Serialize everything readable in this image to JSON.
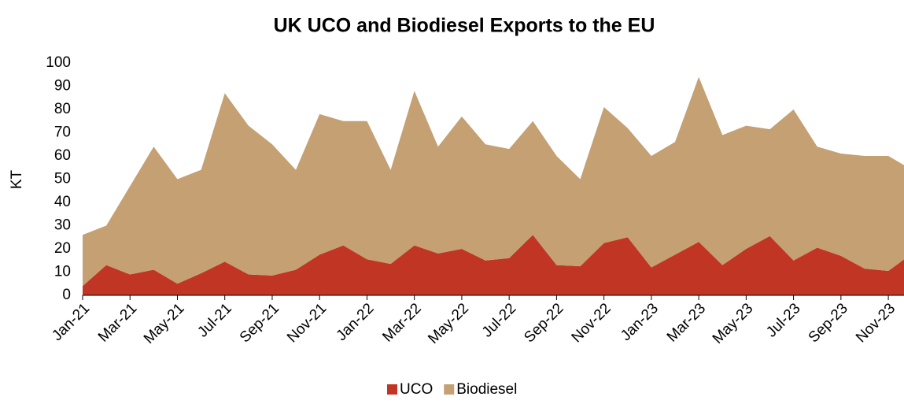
{
  "chart_data": {
    "type": "stacked_area",
    "title": "UK UCO and Biodiesel Exports to the EU",
    "y_label": "KT",
    "categories": [
      "Jan-21",
      null,
      "Mar-21",
      null,
      "May-21",
      null,
      "Jul-21",
      null,
      "Sep-21",
      null,
      "Nov-21",
      null,
      "Jan-22",
      null,
      "Mar-22",
      null,
      "May-22",
      null,
      "Jul-22",
      null,
      "Sep-22",
      null,
      "Nov-22",
      null,
      "Jan-23",
      null,
      "Mar-23",
      null,
      "May-23",
      null,
      "Jul-23",
      null,
      "Sep-23",
      null,
      "Nov-23",
      null
    ],
    "series": [
      {
        "name": "UCO",
        "color": "#c13524",
        "values": [
          4,
          13,
          9,
          11,
          5,
          9.5,
          14.5,
          9,
          8.5,
          11,
          17.5,
          21.5,
          15.5,
          13.5,
          21.5,
          18,
          20,
          15,
          16,
          26,
          13,
          12.5,
          22.5,
          25,
          12,
          17.5,
          23,
          13,
          20,
          25.5,
          15,
          20.5,
          17,
          11.5,
          10.5,
          18
        ]
      },
      {
        "name": "Biodiesel",
        "color": "#c4a073",
        "values": [
          22,
          17,
          38,
          53,
          45,
          44.5,
          72.5,
          64,
          56.5,
          43,
          60.5,
          53.5,
          59.5,
          40.5,
          66.5,
          46,
          57,
          50,
          47,
          49,
          47,
          37.5,
          58.5,
          47,
          48,
          48.5,
          71,
          56,
          53,
          46,
          65,
          43.5,
          44,
          48.5,
          49.5,
          36
        ]
      }
    ],
    "ylim": [
      0,
      100
    ],
    "yticks": [
      0,
      10,
      20,
      30,
      40,
      50,
      60,
      70,
      80,
      90,
      100
    ],
    "grid": false,
    "legend": "bottom"
  }
}
